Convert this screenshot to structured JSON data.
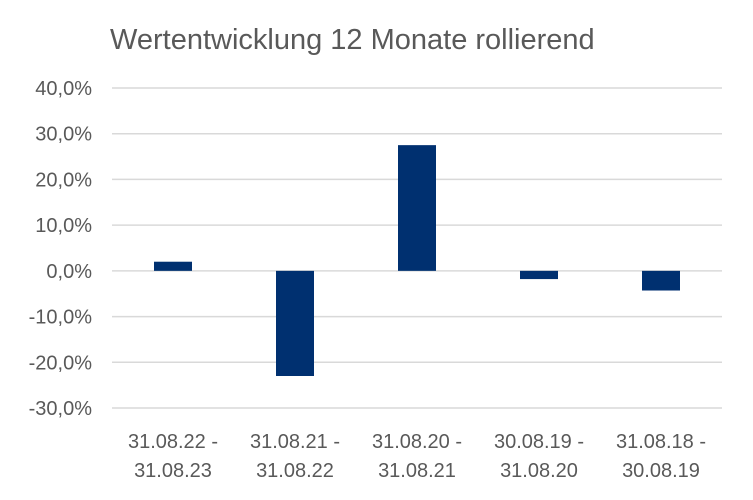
{
  "chart_data": {
    "type": "bar",
    "title": "Wertentwicklung 12 Monate rollierend",
    "xlabel": "",
    "ylabel": "",
    "categories": [
      [
        "31.08.22 -",
        "31.08.23"
      ],
      [
        "31.08.21 -",
        "31.08.22"
      ],
      [
        "31.08.20 -",
        "31.08.21"
      ],
      [
        "30.08.19 -",
        "31.08.20"
      ],
      [
        "31.08.18 -",
        "30.08.19"
      ]
    ],
    "values": [
      2.0,
      -23.0,
      27.5,
      -1.8,
      -4.3
    ],
    "ylim": [
      -30,
      40
    ],
    "yticks": [
      40,
      30,
      20,
      10,
      0,
      -10,
      -20,
      -30
    ],
    "ytick_labels": [
      "40,0%",
      "30,0%",
      "20,0%",
      "10,0%",
      "0,0%",
      "-10,0%",
      "-20,0%",
      "-30,0%"
    ],
    "grid": true,
    "legend": "none",
    "colors": {
      "bar": "#003070",
      "grid": "#d9d9d9",
      "text": "#595959"
    }
  }
}
